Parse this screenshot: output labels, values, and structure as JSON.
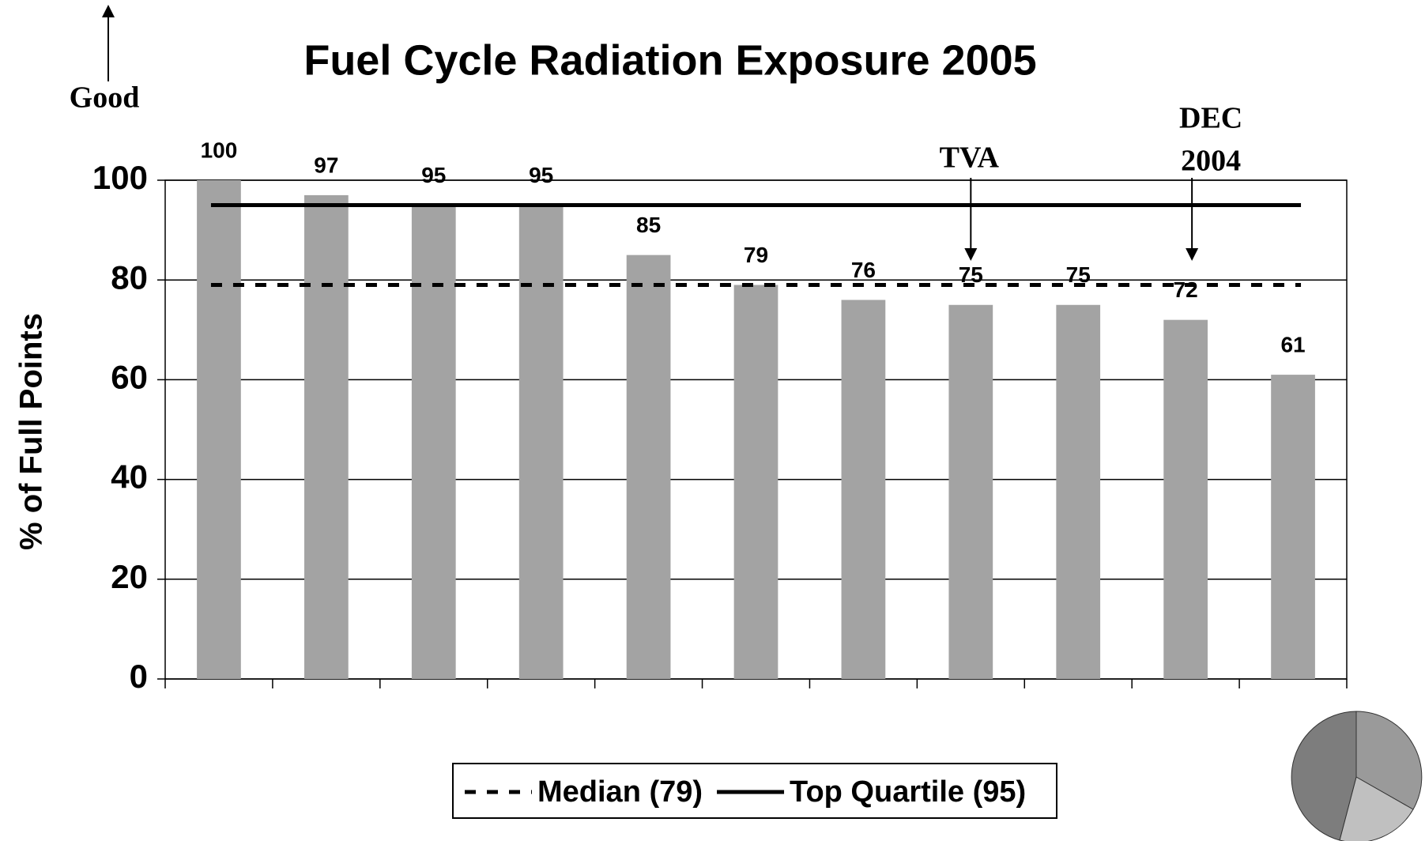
{
  "chart_data": {
    "type": "bar",
    "title": "Fuel Cycle Radiation Exposure 2005",
    "y_label": "% of Full Points",
    "categories": [
      null,
      null,
      null,
      null,
      null,
      null,
      null,
      null,
      null,
      null,
      null
    ],
    "values": [
      100,
      97,
      95,
      95,
      85,
      79,
      76,
      75,
      75,
      72,
      61
    ],
    "color": "#a3a3a3",
    "ylim": [
      0,
      100
    ],
    "yticks": [
      0,
      20,
      40,
      60,
      80,
      100
    ],
    "grid": true,
    "reference_lines": [
      {
        "name": "Median (79)",
        "value": 79,
        "style": "dashed",
        "color": "#000000"
      },
      {
        "name": "Top Quartile (95)",
        "value": 95,
        "style": "solid",
        "color": "#000000"
      }
    ],
    "legend": "bottom",
    "annotations": [
      "Good",
      "TVA",
      "DEC",
      "2004"
    ]
  }
}
